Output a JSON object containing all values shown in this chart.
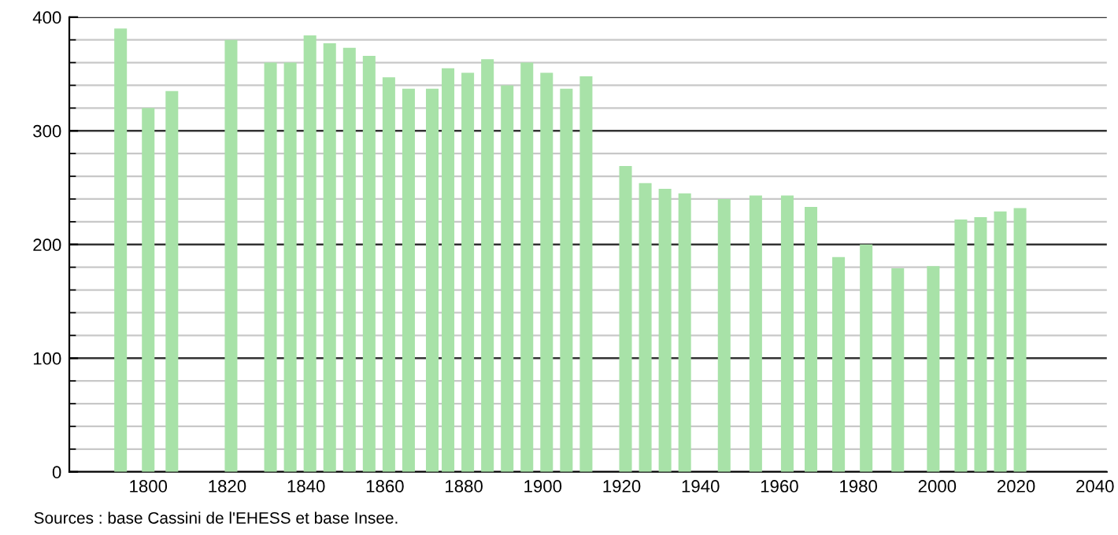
{
  "chart_data": {
    "type": "bar",
    "x": [
      1793,
      1800,
      1806,
      1821,
      1831,
      1836,
      1841,
      1846,
      1851,
      1856,
      1861,
      1866,
      1872,
      1876,
      1881,
      1886,
      1891,
      1896,
      1901,
      1906,
      1911,
      1921,
      1926,
      1931,
      1936,
      1946,
      1954,
      1962,
      1968,
      1975,
      1982,
      1990,
      1999,
      2006,
      2011,
      2016,
      2021
    ],
    "values": [
      390,
      320,
      335,
      380,
      360,
      360,
      384,
      377,
      373,
      366,
      347,
      337,
      337,
      355,
      351,
      363,
      340,
      360,
      351,
      337,
      348,
      269,
      254,
      249,
      245,
      240,
      243,
      243,
      233,
      189,
      200,
      179,
      181,
      222,
      224,
      229,
      232
    ],
    "color": "#a8e2a8",
    "xlim": [
      1780,
      2043
    ],
    "xticks": [
      1800,
      1820,
      1840,
      1860,
      1880,
      1900,
      1920,
      1940,
      1960,
      1980,
      2000,
      2020,
      2040
    ],
    "ylim": [
      0,
      400
    ],
    "yticks": [
      0,
      100,
      200,
      300,
      400
    ],
    "grid": "y",
    "annotations": [
      "Sources : base Cassini de l'EHESS et base Insee."
    ]
  }
}
